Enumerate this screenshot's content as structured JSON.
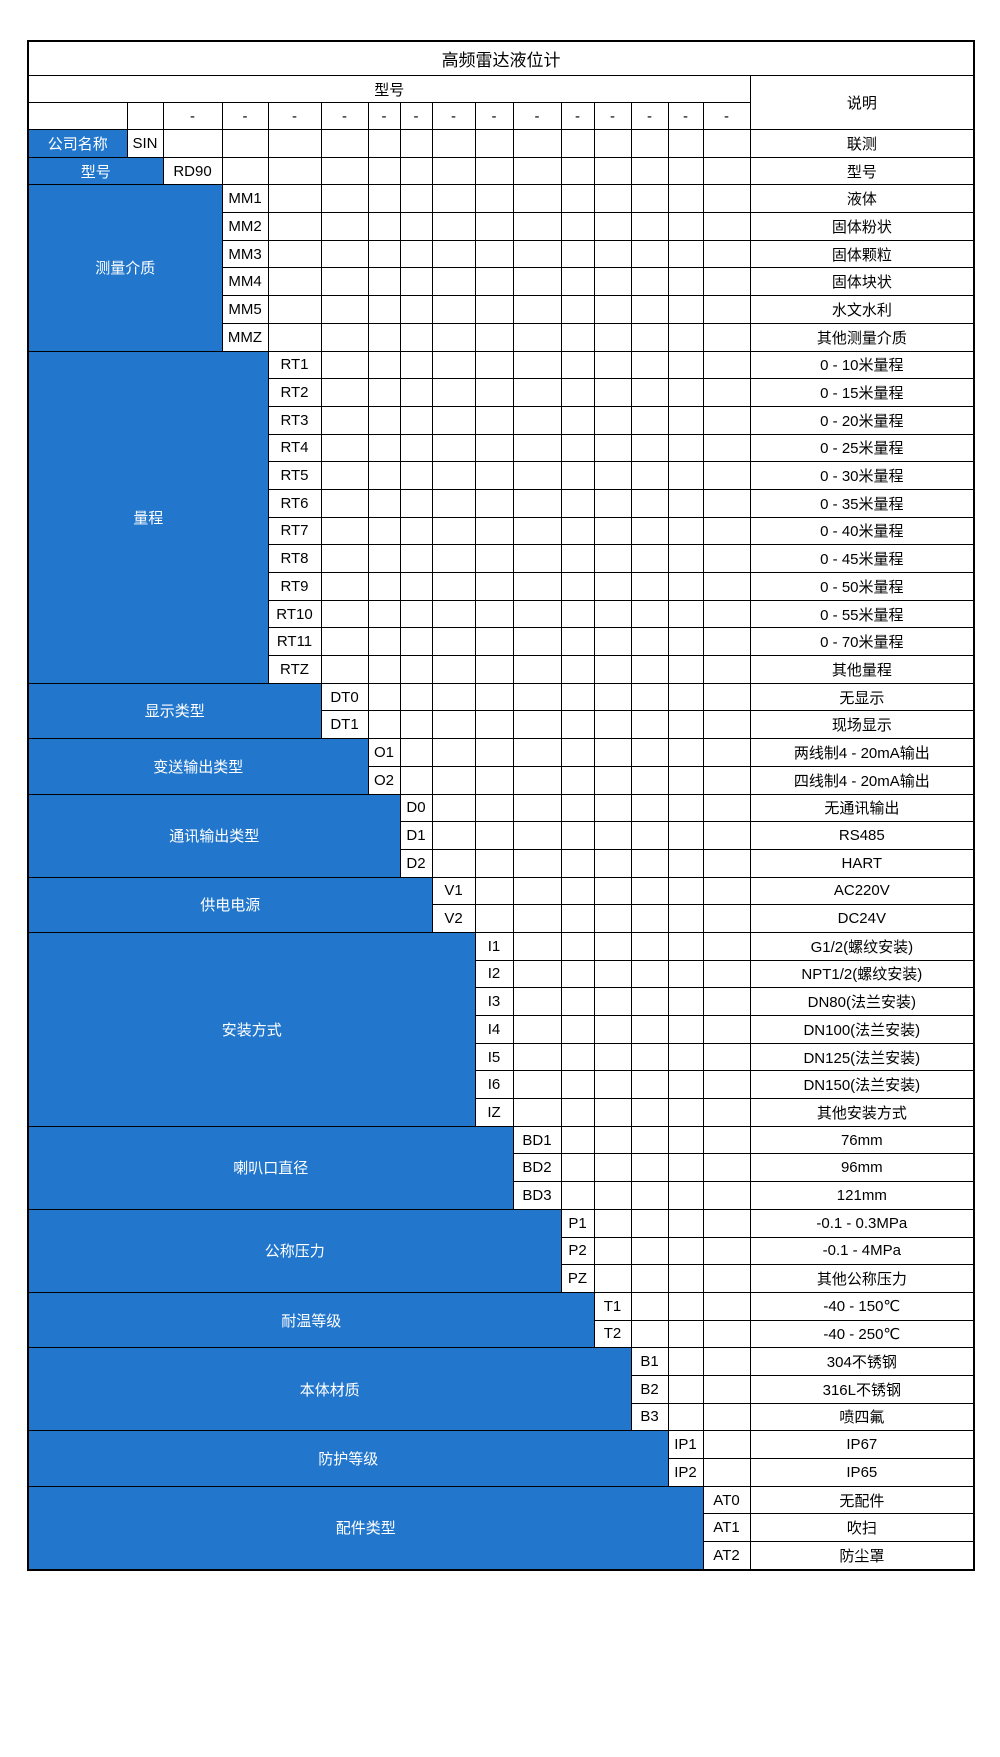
{
  "title": "高频雷达液位计",
  "header": {
    "model": "型号",
    "description": "说明",
    "dash": "-"
  },
  "colors": {
    "accent_blue": "#2277cd",
    "border": "#000000",
    "label_text": "#ffffff",
    "body_text": "#000000"
  },
  "groups": [
    {
      "label": "公司名称",
      "options": [
        {
          "code": "SIN",
          "description": "联测"
        }
      ]
    },
    {
      "label": "型号",
      "options": [
        {
          "code": "RD90",
          "description": "型号"
        }
      ]
    },
    {
      "label": "测量介质",
      "options": [
        {
          "code": "MM1",
          "description": "液体"
        },
        {
          "code": "MM2",
          "description": "固体粉状"
        },
        {
          "code": "MM3",
          "description": "固体颗粒"
        },
        {
          "code": "MM4",
          "description": "固体块状"
        },
        {
          "code": "MM5",
          "description": "水文水利"
        },
        {
          "code": "MMZ",
          "description": "其他测量介质"
        }
      ]
    },
    {
      "label": "量程",
      "options": [
        {
          "code": "RT1",
          "description": "0 - 10米量程"
        },
        {
          "code": "RT2",
          "description": "0 - 15米量程"
        },
        {
          "code": "RT3",
          "description": "0 - 20米量程"
        },
        {
          "code": "RT4",
          "description": "0 - 25米量程"
        },
        {
          "code": "RT5",
          "description": "0 - 30米量程"
        },
        {
          "code": "RT6",
          "description": "0 - 35米量程"
        },
        {
          "code": "RT7",
          "description": "0 - 40米量程"
        },
        {
          "code": "RT8",
          "description": "0 - 45米量程"
        },
        {
          "code": "RT9",
          "description": "0 - 50米量程"
        },
        {
          "code": "RT10",
          "description": "0 - 55米量程"
        },
        {
          "code": "RT11",
          "description": "0 - 70米量程"
        },
        {
          "code": "RTZ",
          "description": "其他量程"
        }
      ]
    },
    {
      "label": "显示类型",
      "options": [
        {
          "code": "DT0",
          "description": "无显示"
        },
        {
          "code": "DT1",
          "description": "现场显示"
        }
      ]
    },
    {
      "label": "变送输出类型",
      "options": [
        {
          "code": "O1",
          "description": "两线制4 - 20mA输出"
        },
        {
          "code": "O2",
          "description": "四线制4 - 20mA输出"
        }
      ]
    },
    {
      "label": "通讯输出类型",
      "options": [
        {
          "code": "D0",
          "description": "无通讯输出"
        },
        {
          "code": "D1",
          "description": "RS485"
        },
        {
          "code": "D2",
          "description": "HART"
        }
      ]
    },
    {
      "label": "供电电源",
      "options": [
        {
          "code": "V1",
          "description": "AC220V"
        },
        {
          "code": "V2",
          "description": "DC24V"
        }
      ]
    },
    {
      "label": "安装方式",
      "options": [
        {
          "code": "I1",
          "description": "G1/2(螺纹安装)"
        },
        {
          "code": "I2",
          "description": "NPT1/2(螺纹安装)"
        },
        {
          "code": "I3",
          "description": "DN80(法兰安装)"
        },
        {
          "code": "I4",
          "description": "DN100(法兰安装)"
        },
        {
          "code": "I5",
          "description": "DN125(法兰安装)"
        },
        {
          "code": "I6",
          "description": "DN150(法兰安装)"
        },
        {
          "code": "IZ",
          "description": "其他安装方式"
        }
      ]
    },
    {
      "label": "喇叭口直径",
      "options": [
        {
          "code": "BD1",
          "description": "76mm"
        },
        {
          "code": "BD2",
          "description": "96mm"
        },
        {
          "code": "BD3",
          "description": "121mm"
        }
      ]
    },
    {
      "label": "公称压力",
      "options": [
        {
          "code": "P1",
          "description": "-0.1 - 0.3MPa"
        },
        {
          "code": "P2",
          "description": "-0.1 - 4MPa"
        },
        {
          "code": "PZ",
          "description": "其他公称压力"
        }
      ]
    },
    {
      "label": "耐温等级",
      "options": [
        {
          "code": "T1",
          "description": "-40 - 150℃"
        },
        {
          "code": "T2",
          "description": "-40 - 250℃"
        }
      ]
    },
    {
      "label": "本体材质",
      "options": [
        {
          "code": "B1",
          "description": "304不锈钢"
        },
        {
          "code": "B2",
          "description": "316L不锈钢"
        },
        {
          "code": "B3",
          "description": "喷四氟"
        }
      ]
    },
    {
      "label": "防护等级",
      "options": [
        {
          "code": "IP1",
          "description": "IP67"
        },
        {
          "code": "IP2",
          "description": "IP65"
        }
      ]
    },
    {
      "label": "配件类型",
      "options": [
        {
          "code": "AT0",
          "description": "无配件"
        },
        {
          "code": "AT1",
          "description": "吹扫"
        },
        {
          "code": "AT2",
          "description": "防尘罩"
        }
      ]
    }
  ]
}
